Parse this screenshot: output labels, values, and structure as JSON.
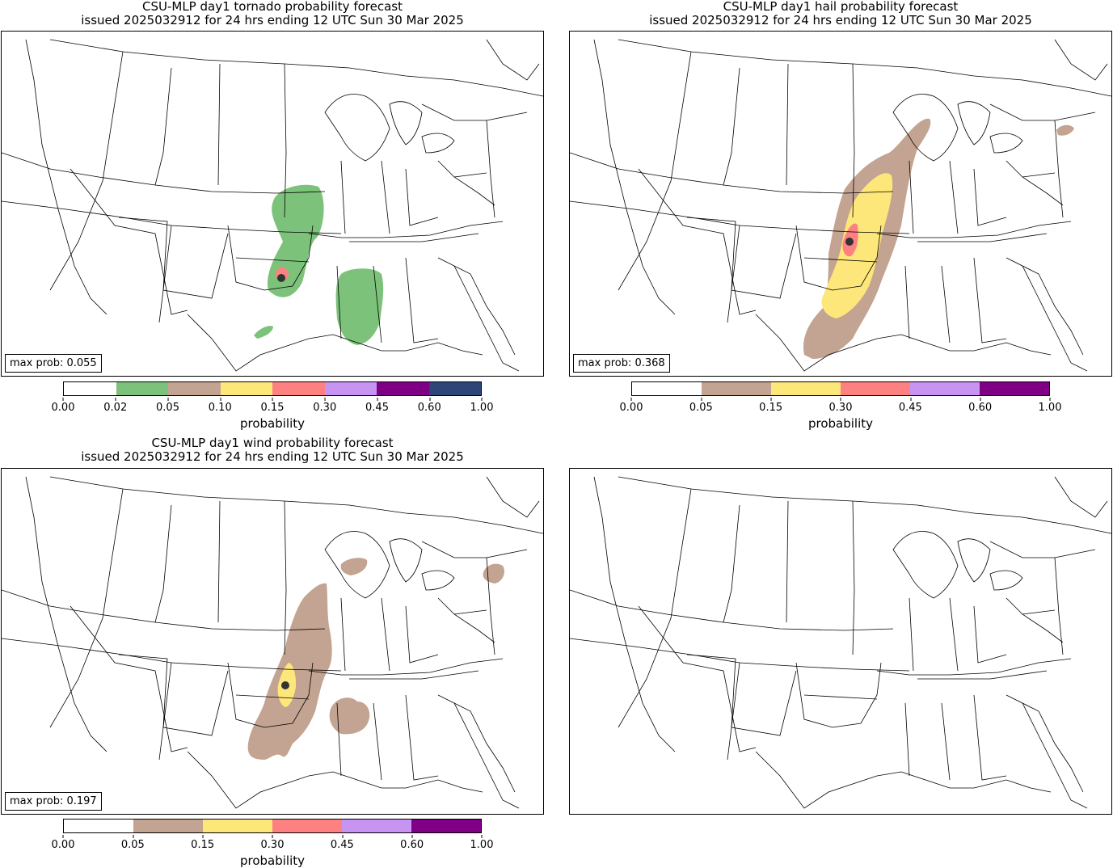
{
  "panels": {
    "tornado": {
      "title_line1": "CSU-MLP day1 tornado probability forecast",
      "title_line2": "issued 2025032912 for 24 hrs ending 12 UTC Sun 30 Mar 2025",
      "max_prob": "max prob: 0.055",
      "cbar_ticks": [
        "0.00",
        "0.02",
        "0.05",
        "0.10",
        "0.15",
        "0.30",
        "0.45",
        "0.60",
        "1.00"
      ],
      "cbar_colors": [
        "#ffffff",
        "#7dc27a",
        "#c3a391",
        "#fde67a",
        "#fd8180",
        "#c795f1",
        "#800085",
        "#2d4577"
      ],
      "cbar_label": "probability"
    },
    "hail": {
      "title_line1": "CSU-MLP day1 hail probability forecast",
      "title_line2": "issued 2025032912 for 24 hrs ending 12 UTC Sun 30 Mar 2025",
      "max_prob": "max prob: 0.368",
      "cbar_ticks": [
        "0.00",
        "0.05",
        "0.15",
        "0.30",
        "0.45",
        "0.60",
        "1.00"
      ],
      "cbar_colors": [
        "#ffffff",
        "#c3a391",
        "#fde67a",
        "#fd8180",
        "#c795f1",
        "#800085"
      ],
      "cbar_label": "probability"
    },
    "wind": {
      "title_line1": "CSU-MLP day1 wind probability forecast",
      "title_line2": "issued 2025032912 for 24 hrs ending 12 UTC Sun 30 Mar 2025",
      "max_prob": "max prob: 0.197",
      "cbar_ticks": [
        "0.00",
        "0.05",
        "0.15",
        "0.30",
        "0.45",
        "0.60",
        "1.00"
      ],
      "cbar_colors": [
        "#ffffff",
        "#c3a391",
        "#fde67a",
        "#fd8180",
        "#c795f1",
        "#800085"
      ],
      "cbar_label": "probability"
    },
    "empty": {}
  },
  "colors": {
    "green": "#7dc27a",
    "brown": "#c3a391",
    "yellow": "#fde67a",
    "red": "#fd8180",
    "marker": "#333333"
  }
}
